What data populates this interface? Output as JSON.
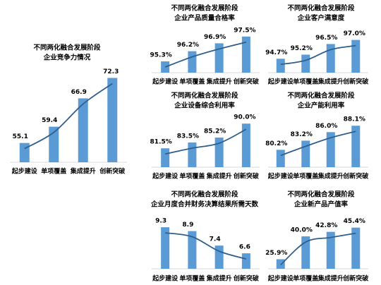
{
  "chart_data": [
    {
      "type": "bar",
      "title": [
        "不同两化融合发展阶段",
        "企业竞争力情况"
      ],
      "categories": [
        "起步建设",
        "单项覆盖",
        "集成提升",
        "创新突破"
      ],
      "values": [
        55.1,
        59.4,
        66.9,
        72.3
      ],
      "ylim": [
        50,
        75
      ],
      "color": "#5b9bd5",
      "trend_color": "#2f5f8f",
      "trendline": true
    },
    {
      "type": "bar",
      "title": [
        "不同两化融合发展阶段",
        "企业产品质量合格率"
      ],
      "categories": [
        "起步建设",
        "单项覆盖",
        "集成提升",
        "创新突破"
      ],
      "values": [
        95.3,
        96.2,
        96.9,
        97.5
      ],
      "value_labels": [
        "95.3%",
        "96.2%",
        "96.9%",
        "97.5%"
      ],
      "ylim": [
        94.3,
        97.8
      ],
      "color": "#5b9bd5",
      "trend_color": "#2f5f8f",
      "trendline": true
    },
    {
      "type": "bar",
      "title": [
        "不同两化融合发展阶段",
        "企业客户满意度"
      ],
      "categories": [
        "起步建设",
        "单项覆盖",
        "集成提升",
        "创新突破"
      ],
      "values": [
        94.7,
        95.2,
        96.5,
        97.0
      ],
      "value_labels": [
        "94.7%",
        "95.2%",
        "96.5%",
        "97.0%"
      ],
      "ylim": [
        93,
        98
      ],
      "color": "#5b9bd5",
      "trend_color": "#2f5f8f",
      "trendline": true
    },
    {
      "type": "bar",
      "title": [
        "不同两化融合发展阶段",
        "企业设备综合利用率"
      ],
      "categories": [
        "起步建设",
        "单项覆盖",
        "集成提升",
        "创新突破"
      ],
      "values": [
        81.5,
        83.5,
        85.2,
        90.0
      ],
      "value_labels": [
        "81.5%",
        "83.5%",
        "85.2%",
        "90.0%"
      ],
      "ylim": [
        75,
        92
      ],
      "color": "#5b9bd5",
      "trend_color": "#2f5f8f",
      "trendline": true
    },
    {
      "type": "bar",
      "title": [
        "不同两化融合发展阶段",
        "企业产能利用率"
      ],
      "categories": [
        "起步建设",
        "单项覆盖",
        "集成提升",
        "创新突破"
      ],
      "values": [
        80.2,
        83.2,
        86.0,
        88.1
      ],
      "value_labels": [
        "80.2%",
        "83.2%",
        "86.0%",
        "88.1%"
      ],
      "ylim": [
        74.5,
        90
      ],
      "color": "#5b9bd5",
      "trend_color": "#2f5f8f",
      "trendline": true
    },
    {
      "type": "bar",
      "title": [
        "不同两化融合发展阶段",
        "企业月度合并财务决算结果所需天数"
      ],
      "categories": [
        "起步建设",
        "单项覆盖",
        "集成提升",
        "创新突破"
      ],
      "values": [
        9.3,
        8.9,
        7.4,
        6.6
      ],
      "ylim": [
        5,
        9.6
      ],
      "color": "#5b9bd5",
      "trend_color": "#2f5f8f",
      "trendline": true
    },
    {
      "type": "bar",
      "title": [
        "不同两化融合发展阶段",
        "企业新产品产值率"
      ],
      "categories": [
        "起步建设",
        "单项覆盖",
        "集成提升",
        "创新突破"
      ],
      "values": [
        25.9,
        40.0,
        42.8,
        45.4
      ],
      "value_labels": [
        "25.9%",
        "40.0%",
        "42.8%",
        "45.4%"
      ],
      "ylim": [
        20,
        47
      ],
      "color": "#5b9bd5",
      "trend_color": "#2f5f8f",
      "trendline": true
    }
  ]
}
